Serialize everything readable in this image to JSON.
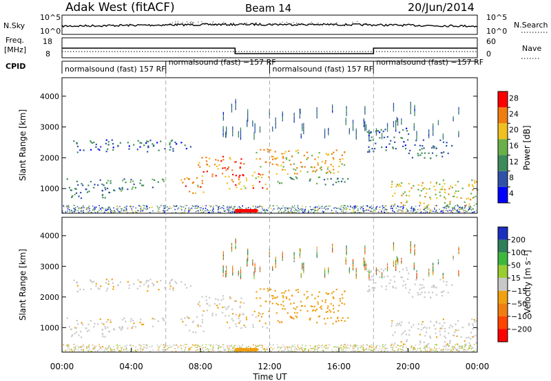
{
  "header": {
    "station": "Adak West (fitACF)",
    "beam": "Beam 14",
    "date": "20/Jun/2014"
  },
  "time_axis": {
    "label": "Time UT",
    "ticks": [
      "00:00",
      "04:00",
      "08:00",
      "12:00",
      "16:00",
      "20:00",
      "00:00"
    ]
  },
  "noise_panel": {
    "left_label": "N.Sky",
    "left_ticks": [
      "10^5",
      "10^0"
    ],
    "right_label": "N.Search",
    "right_ticks": [
      "10^5",
      "10^0"
    ]
  },
  "freq_panel": {
    "left_label_top": "Freq.",
    "left_label_bottom": "[MHz]",
    "left_ticks": [
      "18",
      "8"
    ],
    "right_label": "Nave",
    "right_ticks": [
      "60",
      "0"
    ]
  },
  "cpid_panel": {
    "label": "CPID",
    "segments": [
      {
        "text": "normalsound (fast) 157 RF",
        "start_h": 0,
        "end_h": 6
      },
      {
        "text": "normalsound (fast) −157 RF",
        "start_h": 6,
        "end_h": 12
      },
      {
        "text": "normalsound (fast) 157 RF",
        "start_h": 12,
        "end_h": 18
      },
      {
        "text": "normalsound (fast) −157 RF",
        "start_h": 18,
        "end_h": 24
      }
    ]
  },
  "power_panel": {
    "ylabel": "Slant Range [km]",
    "yticks": [
      "4000",
      "3000",
      "2000",
      "1000"
    ],
    "colorbar_label": "Power [dB]",
    "colorbar_ticks": [
      "28",
      "24",
      "20",
      "16",
      "12",
      "8",
      "4"
    ],
    "colors": [
      "#0000ff",
      "#2f52a8",
      "#3d8a5a",
      "#6ab04a",
      "#f0c020",
      "#f07d10",
      "#ff0000"
    ]
  },
  "velocity_panel": {
    "ylabel": "Slant Range [km]",
    "yticks": [
      "4000",
      "3000",
      "2000",
      "1000"
    ],
    "colorbar_label": "Velocity [m s⁻¹]",
    "colorbar_ticks": [
      "200",
      "100",
      "50",
      "15",
      "−15",
      "−50",
      "−100",
      "−200"
    ],
    "colors": [
      "#1b2fbf",
      "#2f7f5a",
      "#3db83d",
      "#9acd32",
      "#c8c8c8",
      "#f0a010",
      "#f07d10",
      "#ff4500",
      "#ff0000"
    ]
  },
  "chart_data": {
    "type": "heatmap",
    "title": "Adak West (fitACF) Beam 14 20/Jun/2014",
    "xlabel": "Time UT",
    "ylabel": "Slant Range [km]",
    "x_range_hours": [
      0,
      24
    ],
    "y_range_km": [
      200,
      4600
    ],
    "frequency_mhz": [
      {
        "start_h": 0,
        "end_h": 10,
        "freq": 14
      },
      {
        "start_h": 10,
        "end_h": 18,
        "freq": 10
      },
      {
        "start_h": 18,
        "end_h": 24,
        "freq": 14
      }
    ],
    "nave": 20,
    "echo_bands": [
      {
        "t0": 0.5,
        "t1": 7.5,
        "r0": 2200,
        "r1": 2600,
        "power_db": 8,
        "velocity": -5
      },
      {
        "t0": 0.2,
        "t1": 6.0,
        "r0": 1000,
        "r1": 1350,
        "power_db": 10,
        "velocity": -5
      },
      {
        "t0": 0.4,
        "t1": 3.5,
        "r0": 700,
        "r1": 1000,
        "power_db": 9,
        "velocity": 0
      },
      {
        "t0": 6.8,
        "t1": 8.2,
        "r0": 850,
        "r1": 1400,
        "power_db": 22,
        "velocity": -5
      },
      {
        "t0": 7.8,
        "t1": 10.5,
        "r0": 1400,
        "r1": 2100,
        "power_db": 24,
        "velocity": -10
      },
      {
        "t0": 9.5,
        "t1": 12.0,
        "r0": 1000,
        "r1": 1500,
        "power_db": 22,
        "velocity": -10
      },
      {
        "t0": 11.0,
        "t1": 16.5,
        "r0": 1500,
        "r1": 2300,
        "power_db": 20,
        "velocity": -30
      },
      {
        "t0": 12.3,
        "t1": 17.0,
        "r0": 1150,
        "r1": 1400,
        "power_db": 10,
        "velocity": -40
      },
      {
        "t0": 17.5,
        "t1": 20.0,
        "r0": 2200,
        "r1": 3000,
        "power_db": 8,
        "velocity": 0
      },
      {
        "t0": 20.0,
        "t1": 22.5,
        "r0": 2000,
        "r1": 2600,
        "power_db": 8,
        "velocity": 0
      },
      {
        "t0": 19.0,
        "t1": 24.0,
        "r0": 450,
        "r1": 1300,
        "power_db": 18,
        "velocity": -5
      },
      {
        "t0": 10.0,
        "t1": 11.5,
        "r0": 200,
        "r1": 350,
        "power_db": 26,
        "velocity": -30
      }
    ],
    "power_scale_db": [
      0,
      30
    ],
    "velocity_scale": [
      -200,
      200
    ]
  }
}
